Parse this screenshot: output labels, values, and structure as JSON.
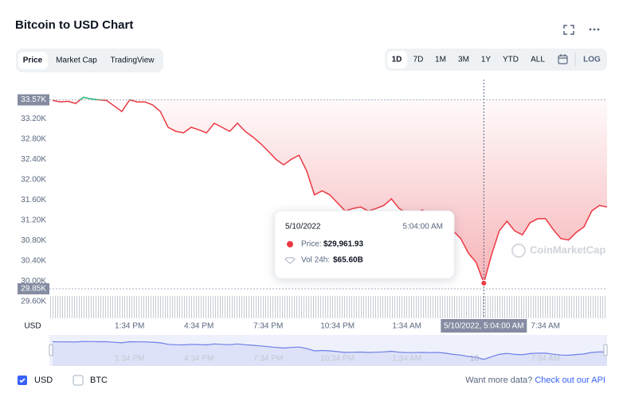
{
  "header": {
    "title": "Bitcoin to USD Chart"
  },
  "tabs": [
    "Price",
    "Market Cap",
    "TradingView"
  ],
  "ranges": [
    "1D",
    "7D",
    "1M",
    "3M",
    "1Y",
    "YTD",
    "ALL"
  ],
  "scale_toggle": "LOG",
  "footer": {
    "currencies": [
      "USD",
      "BTC"
    ],
    "prompt": "Want more data?",
    "link": "Check out our API"
  },
  "chart_data": {
    "type": "line",
    "watermark": "CoinMarketCap",
    "y_unit_label": "USD",
    "series": [
      {
        "name": "Price",
        "color": "#ea3943",
        "color_above": "#16c784",
        "values": [
          33560,
          33530,
          33540,
          33500,
          33620,
          33590,
          33570,
          33560,
          33450,
          33340,
          33570,
          33530,
          33530,
          33470,
          33340,
          33030,
          32950,
          32920,
          33030,
          32980,
          32920,
          33110,
          33030,
          32950,
          33110,
          32950,
          32840,
          32710,
          32560,
          32400,
          32290,
          32400,
          32480,
          32170,
          31700,
          31780,
          31700,
          31540,
          31380,
          31430,
          31460,
          31380,
          31430,
          31490,
          31620,
          31430,
          31340,
          31340,
          31400,
          31340,
          31380,
          31230,
          30990,
          30840,
          30550,
          30370,
          29961.93,
          30520,
          30990,
          31180,
          30990,
          30910,
          31150,
          31230,
          31230,
          31020,
          30840,
          30810,
          30960,
          31070,
          31380,
          31490,
          31460
        ]
      }
    ],
    "xlim": [
      0,
      72
    ],
    "xticks": [
      {
        "value": 10,
        "label": "1:34 PM"
      },
      {
        "value": 19,
        "label": "4:34 PM"
      },
      {
        "value": 28,
        "label": "7:34 PM"
      },
      {
        "value": 37,
        "label": "10:34 PM"
      },
      {
        "value": 46,
        "label": "1:34 AM"
      },
      {
        "value": 64,
        "label": "7:34 AM"
      }
    ],
    "ylim": [
      29270,
      33970
    ],
    "yticks": [
      {
        "value": 33200,
        "label": "33.20K"
      },
      {
        "value": 32800,
        "label": "32.80K"
      },
      {
        "value": 32400,
        "label": "32.40K"
      },
      {
        "value": 32000,
        "label": "32.00K"
      },
      {
        "value": 31600,
        "label": "31.60K"
      },
      {
        "value": 31200,
        "label": "31.20K"
      },
      {
        "value": 30800,
        "label": "30.80K"
      },
      {
        "value": 30400,
        "label": "30.40K"
      },
      {
        "value": 30000,
        "label": "30.00K"
      },
      {
        "value": 29600,
        "label": "29.60K"
      }
    ],
    "reference_lines": [
      {
        "value": 33570,
        "label": "33.57K"
      },
      {
        "value": 29850,
        "label": "29.85K"
      }
    ],
    "crosshair": {
      "index": 56,
      "label": "5/10/2022, 5:04:00 AM"
    },
    "tooltip": {
      "date": "5/10/2022",
      "time": "5:04:00 AM",
      "price_label": "Price:",
      "price": "$29,961.93",
      "vol_label": "Vol 24h:",
      "vol": "$65.60B"
    },
    "navigator": {
      "color": "#6f7fe8",
      "marker_label": "10"
    }
  }
}
